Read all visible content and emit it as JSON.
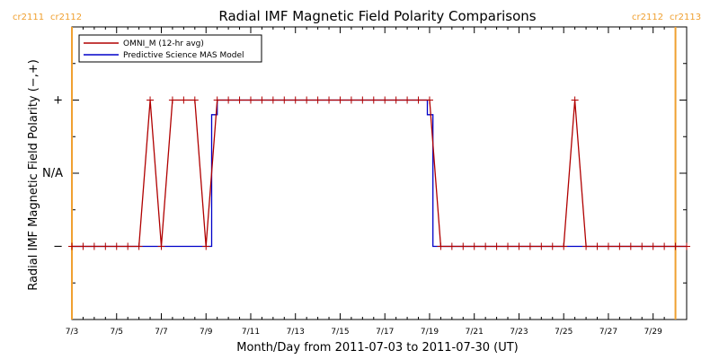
{
  "chart_data": {
    "type": "line",
    "title": "Radial IMF Magnetic Field Polarity Comparisons",
    "xlabel": "Month/Day from 2011-07-03 to 2011-07-30 (UT)",
    "ylabel": "Radial IMF Magnetic Field Polarity (−,+)",
    "x_ticks": [
      "7/3",
      "7/5",
      "7/7",
      "7/9",
      "7/11",
      "7/13",
      "7/15",
      "7/17",
      "7/19",
      "7/21",
      "7/23",
      "7/25",
      "7/27",
      "7/29"
    ],
    "y_ticks": [
      "−",
      "N/A",
      "+"
    ],
    "y_tick_values": [
      -1,
      0,
      1
    ],
    "ylim": [
      -2,
      2
    ],
    "xlim_days": [
      0,
      27.5
    ],
    "carrington_left": [
      "cr2111",
      "cr2112"
    ],
    "carrington_right": [
      "cr2112",
      "cr2113"
    ],
    "carrington_markers_days": [
      0,
      27.0
    ],
    "legend": {
      "position": "top-left",
      "entries": [
        "OMNI_M (12-hr avg)",
        "Predictive Science MAS Model"
      ]
    },
    "series": [
      {
        "name": "OMNI_M (12-hr avg)",
        "color": "#b00000",
        "marker": "plus",
        "points": [
          [
            0,
            -1
          ],
          [
            0.5,
            -1
          ],
          [
            1,
            -1
          ],
          [
            1.5,
            -1
          ],
          [
            2,
            -1
          ],
          [
            2.5,
            -1
          ],
          [
            3,
            -1
          ],
          [
            3.5,
            1
          ],
          [
            4,
            -1
          ],
          [
            4.5,
            1
          ],
          [
            5,
            1
          ],
          [
            5.5,
            1
          ],
          [
            6,
            -1
          ],
          [
            6.5,
            1
          ],
          [
            7,
            1
          ],
          [
            7.5,
            1
          ],
          [
            8,
            1
          ],
          [
            8.5,
            1
          ],
          [
            9,
            1
          ],
          [
            9.5,
            1
          ],
          [
            10,
            1
          ],
          [
            10.5,
            1
          ],
          [
            11,
            1
          ],
          [
            11.5,
            1
          ],
          [
            12,
            1
          ],
          [
            12.5,
            1
          ],
          [
            13,
            1
          ],
          [
            13.5,
            1
          ],
          [
            14,
            1
          ],
          [
            14.5,
            1
          ],
          [
            15,
            1
          ],
          [
            15.5,
            1
          ],
          [
            16,
            1
          ],
          [
            16.5,
            -1
          ],
          [
            17,
            -1
          ],
          [
            17.5,
            -1
          ],
          [
            18,
            -1
          ],
          [
            18.5,
            -1
          ],
          [
            19,
            -1
          ],
          [
            19.5,
            -1
          ],
          [
            20,
            -1
          ],
          [
            20.5,
            -1
          ],
          [
            21,
            -1
          ],
          [
            21.5,
            -1
          ],
          [
            22,
            -1
          ],
          [
            22.5,
            1
          ],
          [
            23,
            -1
          ],
          [
            23.5,
            -1
          ],
          [
            24,
            -1
          ],
          [
            24.5,
            -1
          ],
          [
            25,
            -1
          ],
          [
            25.5,
            -1
          ],
          [
            26,
            -1
          ],
          [
            26.5,
            -1
          ],
          [
            27,
            -1
          ],
          [
            27.5,
            -1
          ]
        ]
      },
      {
        "name": "Predictive Science MAS Model",
        "color": "#0000c8",
        "marker": "none",
        "points": [
          [
            0,
            -1
          ],
          [
            6.25,
            -1
          ],
          [
            6.25,
            0.8
          ],
          [
            6.5,
            0.8
          ],
          [
            6.5,
            1
          ],
          [
            15.9,
            1
          ],
          [
            15.9,
            0.8
          ],
          [
            16.15,
            0.8
          ],
          [
            16.15,
            -1
          ],
          [
            27.5,
            -1
          ]
        ]
      }
    ]
  }
}
